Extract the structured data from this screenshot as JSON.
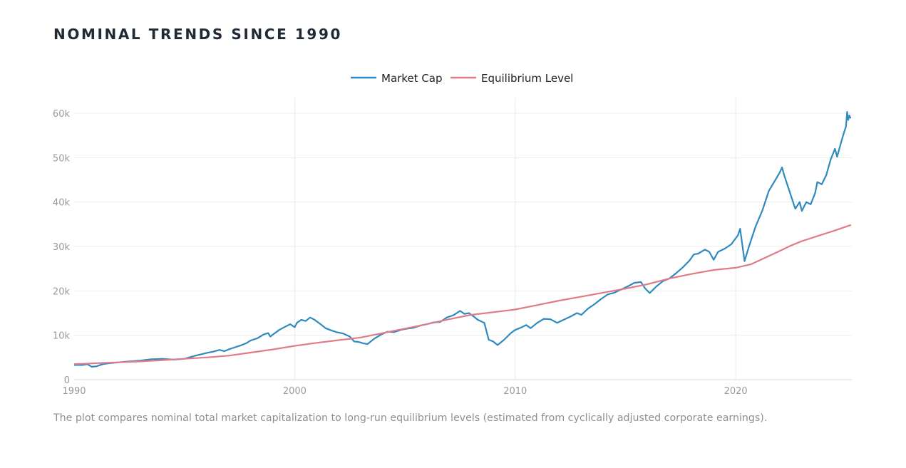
{
  "title": "NOMINAL TRENDS SINCE 1990",
  "caption": "The plot compares nominal total market capitalization to long-run equilibrium levels (estimated from cyclically adjusted corporate earnings).",
  "chart_data": {
    "type": "line",
    "title": "NOMINAL TRENDS SINCE 1990",
    "xlabel": "",
    "ylabel": "",
    "xlim": [
      1990,
      2025.2
    ],
    "ylim": [
      0,
      60000
    ],
    "x_ticks": [
      1990,
      2000,
      2010,
      2020
    ],
    "x_tick_labels": [
      "1990",
      "2000",
      "2010",
      "2020"
    ],
    "y_ticks": [
      0,
      10000,
      20000,
      30000,
      40000,
      50000,
      60000
    ],
    "y_tick_labels": [
      "0",
      "10k",
      "20k",
      "30k",
      "40k",
      "50k",
      "60k"
    ],
    "grid": true,
    "legend_position": "top-center",
    "series": [
      {
        "name": "Market Cap",
        "color": "#2f8abf",
        "points": [
          [
            1990.0,
            3300
          ],
          [
            1990.4,
            3300
          ],
          [
            1990.6,
            3500
          ],
          [
            1990.8,
            2900
          ],
          [
            1991.0,
            3000
          ],
          [
            1991.3,
            3500
          ],
          [
            1991.6,
            3700
          ],
          [
            1992.0,
            3900
          ],
          [
            1992.5,
            4100
          ],
          [
            1993.0,
            4300
          ],
          [
            1993.5,
            4600
          ],
          [
            1994.0,
            4700
          ],
          [
            1994.5,
            4500
          ],
          [
            1995.0,
            4700
          ],
          [
            1995.5,
            5400
          ],
          [
            1996.0,
            6000
          ],
          [
            1996.3,
            6300
          ],
          [
            1996.6,
            6700
          ],
          [
            1996.8,
            6400
          ],
          [
            1997.0,
            6800
          ],
          [
            1997.3,
            7300
          ],
          [
            1997.6,
            7800
          ],
          [
            1997.8,
            8200
          ],
          [
            1998.0,
            8800
          ],
          [
            1998.3,
            9300
          ],
          [
            1998.6,
            10200
          ],
          [
            1998.8,
            10500
          ],
          [
            1998.9,
            9700
          ],
          [
            1999.0,
            10100
          ],
          [
            1999.3,
            11200
          ],
          [
            1999.6,
            12000
          ],
          [
            1999.8,
            12500
          ],
          [
            2000.0,
            11800
          ],
          [
            2000.1,
            12800
          ],
          [
            2000.3,
            13500
          ],
          [
            2000.5,
            13200
          ],
          [
            2000.7,
            14000
          ],
          [
            2000.9,
            13500
          ],
          [
            2001.2,
            12400
          ],
          [
            2001.4,
            11600
          ],
          [
            2001.6,
            11200
          ],
          [
            2001.9,
            10700
          ],
          [
            2002.2,
            10400
          ],
          [
            2002.5,
            9700
          ],
          [
            2002.7,
            8600
          ],
          [
            2002.9,
            8500
          ],
          [
            2003.1,
            8200
          ],
          [
            2003.3,
            8000
          ],
          [
            2003.6,
            9200
          ],
          [
            2003.9,
            10100
          ],
          [
            2004.2,
            10800
          ],
          [
            2004.5,
            10700
          ],
          [
            2004.8,
            11200
          ],
          [
            2005.1,
            11500
          ],
          [
            2005.4,
            11700
          ],
          [
            2005.7,
            12200
          ],
          [
            2006.0,
            12500
          ],
          [
            2006.3,
            12900
          ],
          [
            2006.6,
            13000
          ],
          [
            2006.9,
            14000
          ],
          [
            2007.2,
            14500
          ],
          [
            2007.5,
            15500
          ],
          [
            2007.7,
            14800
          ],
          [
            2007.9,
            15000
          ],
          [
            2008.1,
            14300
          ],
          [
            2008.3,
            13500
          ],
          [
            2008.6,
            12800
          ],
          [
            2008.8,
            9000
          ],
          [
            2009.0,
            8600
          ],
          [
            2009.2,
            7800
          ],
          [
            2009.5,
            9000
          ],
          [
            2009.8,
            10500
          ],
          [
            2010.0,
            11200
          ],
          [
            2010.3,
            11800
          ],
          [
            2010.5,
            12300
          ],
          [
            2010.7,
            11600
          ],
          [
            2011.0,
            12800
          ],
          [
            2011.3,
            13700
          ],
          [
            2011.6,
            13600
          ],
          [
            2011.9,
            12800
          ],
          [
            2012.2,
            13500
          ],
          [
            2012.5,
            14200
          ],
          [
            2012.8,
            15000
          ],
          [
            2013.0,
            14600
          ],
          [
            2013.3,
            16000
          ],
          [
            2013.6,
            17000
          ],
          [
            2013.9,
            18200
          ],
          [
            2014.2,
            19200
          ],
          [
            2014.5,
            19600
          ],
          [
            2014.8,
            20300
          ],
          [
            2015.1,
            21000
          ],
          [
            2015.4,
            21800
          ],
          [
            2015.7,
            22000
          ],
          [
            2015.9,
            20500
          ],
          [
            2016.1,
            19500
          ],
          [
            2016.4,
            21000
          ],
          [
            2016.7,
            22200
          ],
          [
            2017.0,
            22800
          ],
          [
            2017.3,
            24000
          ],
          [
            2017.6,
            25300
          ],
          [
            2017.9,
            26800
          ],
          [
            2018.1,
            28200
          ],
          [
            2018.3,
            28400
          ],
          [
            2018.6,
            29300
          ],
          [
            2018.8,
            28800
          ],
          [
            2019.0,
            27000
          ],
          [
            2019.2,
            28800
          ],
          [
            2019.5,
            29500
          ],
          [
            2019.8,
            30500
          ],
          [
            2020.1,
            32500
          ],
          [
            2020.2,
            34000
          ],
          [
            2020.4,
            26700
          ],
          [
            2020.6,
            30000
          ],
          [
            2020.9,
            34500
          ],
          [
            2021.2,
            38000
          ],
          [
            2021.5,
            42500
          ],
          [
            2021.8,
            45000
          ],
          [
            2022.0,
            46700
          ],
          [
            2022.1,
            47800
          ],
          [
            2022.2,
            46000
          ],
          [
            2022.4,
            43000
          ],
          [
            2022.6,
            40000
          ],
          [
            2022.7,
            38500
          ],
          [
            2022.9,
            40000
          ],
          [
            2023.0,
            38000
          ],
          [
            2023.2,
            40000
          ],
          [
            2023.4,
            39500
          ],
          [
            2023.6,
            42000
          ],
          [
            2023.7,
            44500
          ],
          [
            2023.9,
            44000
          ],
          [
            2024.1,
            46000
          ],
          [
            2024.3,
            49500
          ],
          [
            2024.5,
            52000
          ],
          [
            2024.6,
            50200
          ],
          [
            2024.8,
            53800
          ],
          [
            2024.9,
            55500
          ],
          [
            2025.0,
            57000
          ],
          [
            2025.05,
            60300
          ],
          [
            2025.1,
            58500
          ],
          [
            2025.15,
            59500
          ],
          [
            2025.2,
            59000
          ]
        ]
      },
      {
        "name": "Equilibrium Level",
        "color": "#e07b88",
        "points": [
          [
            1990.0,
            3500
          ],
          [
            1991.0,
            3700
          ],
          [
            1992.0,
            3900
          ],
          [
            1993.0,
            4100
          ],
          [
            1994.0,
            4400
          ],
          [
            1995.0,
            4700
          ],
          [
            1996.0,
            5000
          ],
          [
            1997.0,
            5400
          ],
          [
            1998.0,
            6100
          ],
          [
            1999.0,
            6800
          ],
          [
            2000.0,
            7600
          ],
          [
            2001.0,
            8300
          ],
          [
            2002.0,
            8900
          ],
          [
            2003.0,
            9500
          ],
          [
            2004.0,
            10500
          ],
          [
            2005.0,
            11500
          ],
          [
            2006.0,
            12500
          ],
          [
            2007.0,
            13600
          ],
          [
            2008.0,
            14600
          ],
          [
            2009.0,
            15200
          ],
          [
            2010.0,
            15800
          ],
          [
            2011.0,
            16800
          ],
          [
            2012.0,
            17800
          ],
          [
            2013.0,
            18700
          ],
          [
            2014.0,
            19600
          ],
          [
            2015.0,
            20500
          ],
          [
            2016.0,
            21500
          ],
          [
            2017.0,
            22800
          ],
          [
            2018.0,
            23800
          ],
          [
            2019.0,
            24700
          ],
          [
            2020.0,
            25200
          ],
          [
            2020.7,
            26000
          ],
          [
            2021.0,
            26700
          ],
          [
            2022.0,
            29000
          ],
          [
            2022.5,
            30200
          ],
          [
            2023.0,
            31200
          ],
          [
            2023.5,
            32000
          ],
          [
            2024.0,
            32800
          ],
          [
            2024.5,
            33600
          ],
          [
            2025.2,
            34800
          ]
        ]
      }
    ]
  }
}
